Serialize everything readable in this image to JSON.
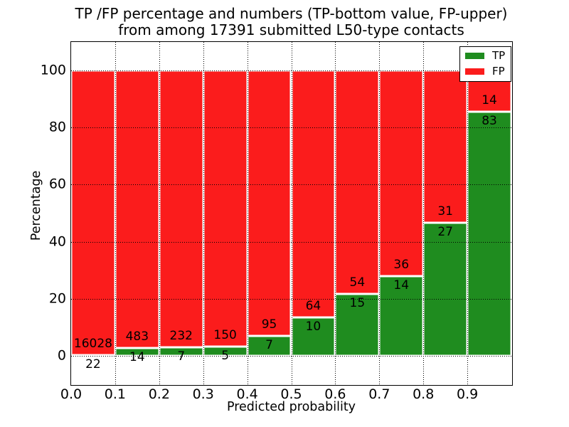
{
  "title": {
    "line1": "TP /FP percentage and numbers (TP-bottom value, FP-upper)",
    "line2": "from among 17391 submitted L50-type contacts"
  },
  "axes": {
    "xlabel": "Predicted probability",
    "ylabel": "Percentage",
    "xlim": [
      0,
      1
    ],
    "ylim": [
      -10,
      110
    ],
    "xticks": [
      "0.0",
      "0.1",
      "0.2",
      "0.3",
      "0.4",
      "0.5",
      "0.6",
      "0.7",
      "0.8",
      "0.9"
    ],
    "yticks": [
      "0",
      "20",
      "40",
      "60",
      "80",
      "100"
    ],
    "grid": "dotted"
  },
  "legend": {
    "position": "upper-right",
    "items": [
      {
        "label": "TP",
        "color": "#1f8c1f"
      },
      {
        "label": "FP",
        "color": "#fb1c1c"
      }
    ]
  },
  "chart_data": {
    "type": "bar",
    "stacked": true,
    "normalized_to_100_percent": true,
    "title": "TP /FP percentage and numbers (TP-bottom value, FP-upper) from among 17391 submitted L50-type contacts",
    "xlabel": "Predicted probability",
    "ylabel": "Percentage",
    "xlim": [
      0,
      1
    ],
    "ylim": [
      -10,
      110
    ],
    "grid": "dotted",
    "legend_position": "upper-right",
    "total_contacts": 17391,
    "x_bin_edges": [
      0.0,
      0.1,
      0.2,
      0.3,
      0.4,
      0.5,
      0.6,
      0.7,
      0.8,
      0.9,
      1.0
    ],
    "categories": [
      "0.0-0.1",
      "0.1-0.2",
      "0.2-0.3",
      "0.3-0.4",
      "0.4-0.5",
      "0.5-0.6",
      "0.6-0.7",
      "0.7-0.8",
      "0.8-0.9",
      "0.9-1.0"
    ],
    "series": [
      {
        "name": "TP",
        "color": "#1f8c1f",
        "counts": [
          22,
          14,
          7,
          5,
          7,
          10,
          15,
          14,
          27,
          83
        ],
        "percent": [
          0.14,
          2.82,
          2.93,
          3.23,
          6.86,
          13.51,
          21.74,
          28.0,
          46.55,
          85.57
        ]
      },
      {
        "name": "FP",
        "color": "#fb1c1c",
        "counts": [
          16028,
          483,
          232,
          150,
          95,
          64,
          54,
          36,
          31,
          14
        ],
        "percent": [
          99.86,
          97.18,
          97.07,
          96.77,
          93.14,
          86.49,
          78.26,
          72.0,
          53.45,
          14.43
        ]
      }
    ]
  }
}
